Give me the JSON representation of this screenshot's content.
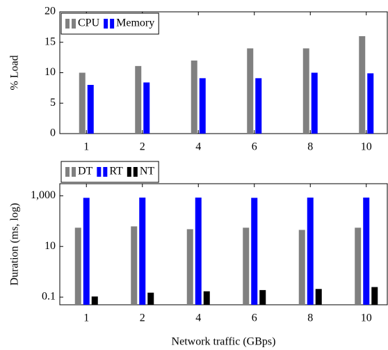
{
  "chart_data": [
    {
      "type": "bar",
      "y_label": "% Load",
      "categories": [
        "1",
        "2",
        "4",
        "6",
        "8",
        "10"
      ],
      "series": [
        {
          "name": "CPU",
          "color": "#808080",
          "values": [
            10,
            11.1,
            12,
            14,
            14,
            16
          ]
        },
        {
          "name": "Memory",
          "color": "#0000ff",
          "values": [
            8,
            8.4,
            9.1,
            9.1,
            10,
            9.9
          ]
        }
      ],
      "ylim": [
        0,
        20
      ],
      "yticks": [
        0,
        5,
        10,
        15,
        20
      ],
      "log_scale": false,
      "grid": false,
      "legend": "upper left"
    },
    {
      "type": "bar",
      "y_label": "Duration (ms, log)",
      "x_label": "Network traffic (GBps)",
      "categories": [
        "1",
        "2",
        "4",
        "6",
        "8",
        "10"
      ],
      "series": [
        {
          "name": "DT",
          "color": "#808080",
          "values": [
            55,
            62,
            48,
            55,
            45,
            55
          ]
        },
        {
          "name": "RT",
          "color": "#0000ff",
          "values": [
            830,
            850,
            850,
            830,
            850,
            850
          ]
        },
        {
          "name": "NT",
          "color": "#000000",
          "values": [
            0.106,
            0.15,
            0.17,
            0.19,
            0.21,
            0.25
          ]
        }
      ],
      "ylim": [
        0.05,
        3000
      ],
      "yticks": [
        0.1,
        10,
        {
          "value": 1000,
          "label": "1,000"
        }
      ],
      "log_scale": true,
      "grid": false,
      "legend": "above left"
    }
  ]
}
